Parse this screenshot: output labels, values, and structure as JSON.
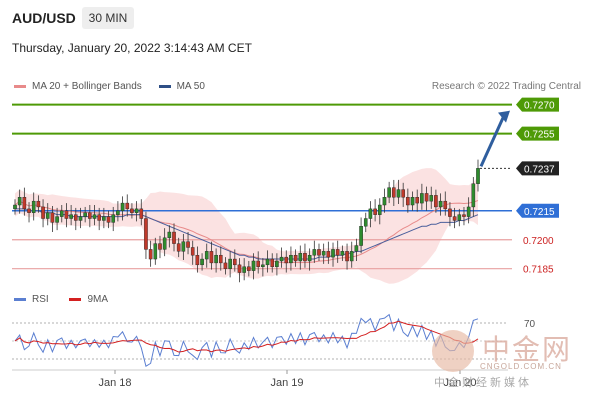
{
  "header": {
    "symbol": "AUD/USD",
    "timeframe": "30 MIN",
    "datetime": "Thursday, January 20, 2022 3:14:43 AM CET"
  },
  "legend": {
    "items": [
      {
        "label": "MA 20 + Bollinger Bands",
        "color": "#e88a8a"
      },
      {
        "label": "MA 50",
        "color": "#2e4f86"
      }
    ],
    "copyright": "Research © 2022 Trading Central"
  },
  "rsi_legend": {
    "items": [
      {
        "label": "RSI",
        "color": "#5b7fd1"
      },
      {
        "label": "9MA",
        "color": "#d42020"
      }
    ]
  },
  "watermark": {
    "brand": "中金网",
    "domain": "CNGOLD.COM.CN",
    "subtitle": "中金财经新媒体"
  },
  "chart_data": {
    "type": "candlestick",
    "x_tick_labels": [
      "Jan 18",
      "Jan 19",
      "Jan 20"
    ],
    "y_range": [
      0.7175,
      0.7275
    ],
    "price_levels": [
      {
        "value": "0.7270",
        "style": "green-box",
        "color": "#4e9a06"
      },
      {
        "value": "0.7255",
        "style": "green-box",
        "color": "#4e9a06"
      },
      {
        "value": "0.7237",
        "style": "dark-box",
        "color": "#222222"
      },
      {
        "value": "0.7215",
        "style": "blue-box",
        "color": "#2f6fd6"
      },
      {
        "value": "0.7200",
        "style": "red-text",
        "color": "#cc2222"
      },
      {
        "value": "0.7185",
        "style": "red-text",
        "color": "#cc2222"
      }
    ],
    "close_series": [
      0.7218,
      0.7222,
      0.7216,
      0.7214,
      0.722,
      0.7217,
      0.7211,
      0.7214,
      0.7209,
      0.7212,
      0.7215,
      0.7211,
      0.7213,
      0.721,
      0.7212,
      0.7214,
      0.7211,
      0.7213,
      0.721,
      0.7212,
      0.7209,
      0.7213,
      0.7215,
      0.7219,
      0.7216,
      0.7214,
      0.7216,
      0.7211,
      0.7195,
      0.719,
      0.7198,
      0.7195,
      0.7201,
      0.7204,
      0.7198,
      0.7194,
      0.7199,
      0.7196,
      0.7192,
      0.7187,
      0.719,
      0.7194,
      0.7188,
      0.7192,
      0.7188,
      0.7185,
      0.719,
      0.7187,
      0.7183,
      0.7186,
      0.7184,
      0.7189,
      0.7186,
      0.7187,
      0.719,
      0.7186,
      0.7189,
      0.7191,
      0.7188,
      0.7192,
      0.7189,
      0.7193,
      0.7189,
      0.7192,
      0.7195,
      0.7192,
      0.7194,
      0.7191,
      0.7195,
      0.7192,
      0.7194,
      0.7189,
      0.7194,
      0.7197,
      0.7207,
      0.7211,
      0.7216,
      0.7213,
      0.7218,
      0.7222,
      0.7227,
      0.7222,
      0.7226,
      0.7222,
      0.7218,
      0.7222,
      0.7219,
      0.7224,
      0.722,
      0.7223,
      0.7217,
      0.722,
      0.7216,
      0.7212,
      0.721,
      0.7213,
      0.7212,
      0.7217,
      0.7229,
      0.7237
    ],
    "ma50": [
      0.7216,
      0.7216,
      0.7216,
      0.7215,
      0.7215,
      0.7215,
      0.7214,
      0.7214,
      0.7214,
      0.7213,
      0.7213,
      0.7213,
      0.7212,
      0.7212,
      0.7212,
      0.7212,
      0.7212,
      0.7212,
      0.7212,
      0.7212,
      0.7212,
      0.7212,
      0.7212,
      0.7212,
      0.7213,
      0.7213,
      0.7213,
      0.7213,
      0.7212,
      0.7211,
      0.721,
      0.7209,
      0.7208,
      0.7207,
      0.7206,
      0.7205,
      0.7204,
      0.7203,
      0.7202,
      0.7201,
      0.72,
      0.7199,
      0.7198,
      0.7197,
      0.7196,
      0.7195,
      0.7194,
      0.7193,
      0.7192,
      0.7192,
      0.7191,
      0.7191,
      0.719,
      0.719,
      0.719,
      0.719,
      0.719,
      0.719,
      0.719,
      0.719,
      0.719,
      0.719,
      0.719,
      0.719,
      0.719,
      0.7191,
      0.7191,
      0.7191,
      0.7192,
      0.7192,
      0.7192,
      0.7193,
      0.7193,
      0.7194,
      0.7194,
      0.7195,
      0.7196,
      0.7197,
      0.7198,
      0.7199,
      0.72,
      0.7201,
      0.7202,
      0.7203,
      0.7204,
      0.7205,
      0.7206,
      0.7207,
      0.7207,
      0.7208,
      0.7208,
      0.7209,
      0.7209,
      0.7209,
      0.7209,
      0.721,
      0.721,
      0.7211,
      0.7212,
      0.7213
    ],
    "rsi_levels": [
      "70"
    ]
  }
}
